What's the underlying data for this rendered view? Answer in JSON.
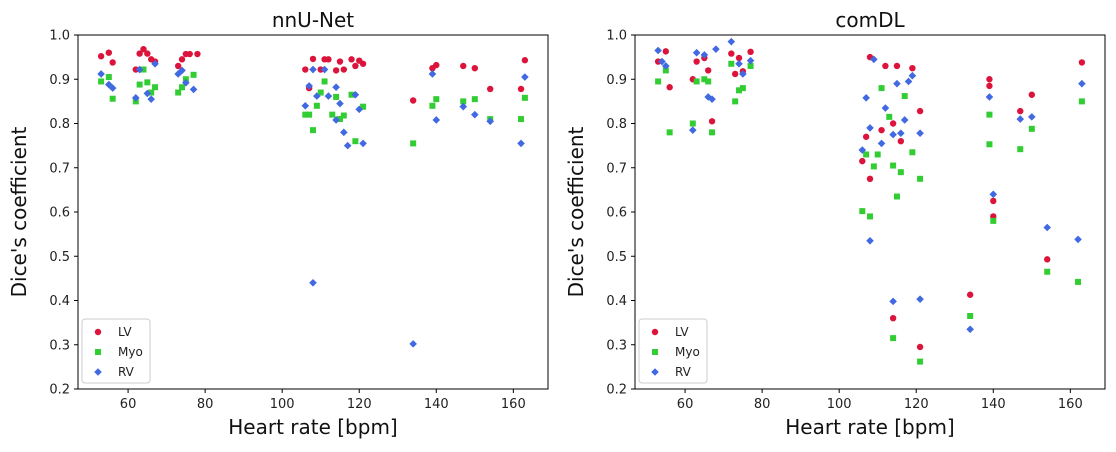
{
  "chart_data": [
    {
      "type": "scatter",
      "title": "nnU-Net",
      "xlabel": "Heart rate [bpm]",
      "ylabel": "Dice's coefficient",
      "xlim": [
        47,
        169
      ],
      "ylim": [
        0.2,
        1.0
      ],
      "xticks": [
        "60",
        "80",
        "100",
        "120",
        "140",
        "160"
      ],
      "yticks": [
        "0.2",
        "0.3",
        "0.4",
        "0.5",
        "0.6",
        "0.7",
        "0.8",
        "0.9",
        "1.0"
      ],
      "legend_position": "bottom-left",
      "series": [
        {
          "name": "LV",
          "marker": "circle",
          "color": "#dc143c",
          "x": [
            53,
            55,
            56,
            62,
            63,
            64,
            65,
            66,
            67,
            73,
            74,
            75,
            76,
            78,
            106,
            107,
            108,
            110,
            111,
            112,
            114,
            115,
            116,
            118,
            119,
            120,
            121,
            134,
            139,
            140,
            147,
            150,
            154,
            162,
            163
          ],
          "y": [
            0.952,
            0.96,
            0.938,
            0.922,
            0.958,
            0.968,
            0.958,
            0.945,
            0.94,
            0.93,
            0.945,
            0.957,
            0.957,
            0.957,
            0.922,
            0.88,
            0.946,
            0.922,
            0.945,
            0.945,
            0.92,
            0.94,
            0.922,
            0.945,
            0.93,
            0.942,
            0.935,
            0.852,
            0.925,
            0.932,
            0.93,
            0.925,
            0.878,
            0.878,
            0.943
          ]
        },
        {
          "name": "Myo",
          "marker": "square",
          "color": "#32cd32",
          "x": [
            53,
            55,
            56,
            62,
            63,
            64,
            65,
            66,
            67,
            73,
            74,
            75,
            77,
            106,
            107,
            108,
            109,
            110,
            111,
            113,
            114,
            115,
            116,
            118,
            119,
            121,
            134,
            139,
            140,
            147,
            150,
            154,
            162,
            163
          ],
          "y": [
            0.895,
            0.905,
            0.856,
            0.85,
            0.888,
            0.922,
            0.893,
            0.87,
            0.882,
            0.87,
            0.882,
            0.9,
            0.91,
            0.82,
            0.82,
            0.785,
            0.84,
            0.87,
            0.895,
            0.82,
            0.86,
            0.81,
            0.818,
            0.865,
            0.76,
            0.838,
            0.755,
            0.84,
            0.855,
            0.85,
            0.855,
            0.81,
            0.81,
            0.858
          ]
        },
        {
          "name": "RV",
          "marker": "diamond",
          "color": "#4169e1",
          "x": [
            53,
            55,
            56,
            62,
            63,
            65,
            66,
            67,
            73,
            74,
            75,
            77,
            106,
            107,
            108,
            108,
            109,
            111,
            112,
            114,
            114,
            115,
            116,
            117,
            119,
            120,
            121,
            134,
            139,
            140,
            147,
            150,
            154,
            162,
            163
          ],
          "y": [
            0.912,
            0.888,
            0.88,
            0.858,
            0.922,
            0.868,
            0.855,
            0.935,
            0.912,
            0.92,
            0.892,
            0.877,
            0.84,
            0.885,
            0.44,
            0.922,
            0.862,
            0.922,
            0.862,
            0.808,
            0.882,
            0.845,
            0.78,
            0.75,
            0.865,
            0.832,
            0.755,
            0.302,
            0.912,
            0.808,
            0.838,
            0.82,
            0.805,
            0.755,
            0.905
          ]
        }
      ]
    },
    {
      "type": "scatter",
      "title": "comDL",
      "xlabel": "Heart rate [bpm]",
      "ylabel": "Dice's coefficient",
      "xlim": [
        47,
        169
      ],
      "ylim": [
        0.2,
        1.0
      ],
      "xticks": [
        "60",
        "80",
        "100",
        "120",
        "140",
        "160"
      ],
      "yticks": [
        "0.2",
        "0.3",
        "0.4",
        "0.5",
        "0.6",
        "0.7",
        "0.8",
        "0.9",
        "1.0"
      ],
      "legend_position": "bottom-left",
      "series": [
        {
          "name": "LV",
          "marker": "circle",
          "color": "#dc143c",
          "x": [
            53,
            55,
            56,
            62,
            63,
            65,
            66,
            67,
            72,
            73,
            74,
            75,
            77,
            106,
            107,
            108,
            108,
            111,
            112,
            114,
            114,
            115,
            116,
            119,
            121,
            121,
            134,
            139,
            139,
            140,
            140,
            147,
            150,
            154,
            163
          ],
          "y": [
            0.94,
            0.963,
            0.882,
            0.9,
            0.94,
            0.948,
            0.92,
            0.805,
            0.958,
            0.912,
            0.948,
            0.918,
            0.962,
            0.715,
            0.77,
            0.95,
            0.675,
            0.785,
            0.93,
            0.8,
            0.36,
            0.93,
            0.76,
            0.925,
            0.828,
            0.295,
            0.413,
            0.9,
            0.885,
            0.625,
            0.59,
            0.828,
            0.865,
            0.493,
            0.938
          ]
        },
        {
          "name": "Myo",
          "marker": "square",
          "color": "#32cd32",
          "x": [
            53,
            55,
            56,
            62,
            63,
            65,
            66,
            67,
            72,
            73,
            74,
            75,
            77,
            106,
            107,
            108,
            109,
            110,
            111,
            113,
            114,
            114,
            115,
            116,
            117,
            119,
            121,
            121,
            134,
            139,
            139,
            140,
            147,
            150,
            154,
            162,
            163
          ],
          "y": [
            0.895,
            0.92,
            0.78,
            0.8,
            0.895,
            0.9,
            0.895,
            0.78,
            0.935,
            0.85,
            0.875,
            0.88,
            0.93,
            0.602,
            0.73,
            0.59,
            0.703,
            0.73,
            0.88,
            0.815,
            0.705,
            0.315,
            0.635,
            0.69,
            0.862,
            0.735,
            0.675,
            0.262,
            0.365,
            0.82,
            0.753,
            0.58,
            0.742,
            0.788,
            0.465,
            0.442,
            0.85
          ]
        },
        {
          "name": "RV",
          "marker": "diamond",
          "color": "#4169e1",
          "x": [
            53,
            54,
            55,
            62,
            63,
            65,
            66,
            67,
            68,
            72,
            74,
            75,
            77,
            106,
            107,
            108,
            108,
            109,
            111,
            112,
            114,
            114,
            115,
            116,
            117,
            118,
            119,
            121,
            121,
            134,
            139,
            140,
            147,
            150,
            154,
            162,
            163
          ],
          "y": [
            0.965,
            0.94,
            0.93,
            0.785,
            0.96,
            0.955,
            0.86,
            0.855,
            0.968,
            0.985,
            0.935,
            0.912,
            0.942,
            0.74,
            0.858,
            0.79,
            0.535,
            0.945,
            0.755,
            0.835,
            0.775,
            0.398,
            0.89,
            0.778,
            0.808,
            0.895,
            0.908,
            0.778,
            0.403,
            0.335,
            0.86,
            0.64,
            0.81,
            0.815,
            0.565,
            0.538,
            0.89
          ]
        }
      ]
    }
  ]
}
